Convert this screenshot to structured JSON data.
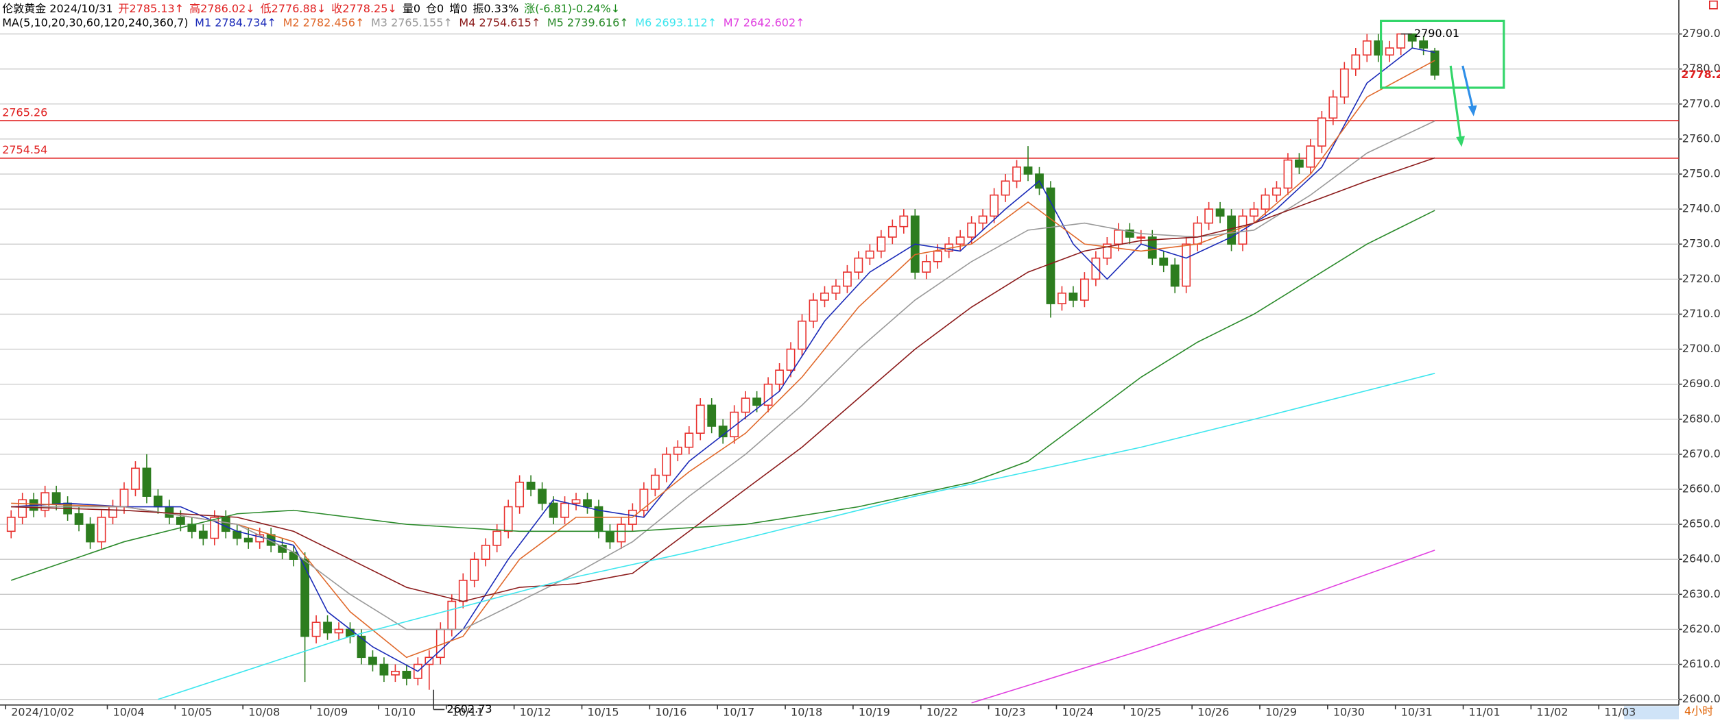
{
  "header": {
    "line1": [
      {
        "text": "伦敦黄金 2024/10/31",
        "color": "#000000"
      },
      {
        "text": "开2785.13↑",
        "color": "#e02020"
      },
      {
        "text": "高2786.02↓",
        "color": "#e02020"
      },
      {
        "text": "低2776.88↓",
        "color": "#e02020"
      },
      {
        "text": "收2778.25↓",
        "color": "#e02020"
      },
      {
        "text": "量0",
        "color": "#000000"
      },
      {
        "text": "仓0",
        "color": "#000000"
      },
      {
        "text": "增0",
        "color": "#000000"
      },
      {
        "text": "振0.33%",
        "color": "#000000"
      },
      {
        "text": "涨(-6.81)-0.24%↓",
        "color": "#1a8a1a"
      }
    ],
    "ma_label": "MA(5,10,20,30,60,120,240,360,7)"
  },
  "chart_data": {
    "type": "candlestick",
    "period": "4小时",
    "up_color": "#e8322f",
    "down_color": "#2d7d1f",
    "grid": true,
    "xlim": [
      -0.5,
      147.6
    ],
    "ylim": [
      2598.4,
      2799.7
    ],
    "xticks": [
      {
        "value": 0,
        "label": "2024/10/02"
      },
      {
        "value": 9,
        "label": "10/04"
      },
      {
        "value": 15,
        "label": "10/05"
      },
      {
        "value": 21,
        "label": "10/08"
      },
      {
        "value": 27,
        "label": "10/09"
      },
      {
        "value": 33,
        "label": "10/10"
      },
      {
        "value": 39,
        "label": "10/11"
      },
      {
        "value": 45,
        "label": "10/12"
      },
      {
        "value": 51,
        "label": "10/15"
      },
      {
        "value": 57,
        "label": "10/16"
      },
      {
        "value": 63,
        "label": "10/17"
      },
      {
        "value": 69,
        "label": "10/18"
      },
      {
        "value": 75,
        "label": "10/19"
      },
      {
        "value": 81,
        "label": "10/22"
      },
      {
        "value": 87,
        "label": "10/23"
      },
      {
        "value": 93,
        "label": "10/24"
      },
      {
        "value": 99,
        "label": "10/25"
      },
      {
        "value": 105,
        "label": "10/26"
      },
      {
        "value": 111,
        "label": "10/29"
      },
      {
        "value": 117,
        "label": "10/30"
      },
      {
        "value": 123,
        "label": "10/31"
      },
      {
        "value": 129,
        "label": "11/01"
      },
      {
        "value": 135,
        "label": "11/02"
      },
      {
        "value": 141,
        "label": "11/03"
      }
    ],
    "yticks": [
      {
        "value": 2600,
        "label": "2600.00"
      },
      {
        "value": 2610,
        "label": "2610.00"
      },
      {
        "value": 2620,
        "label": "2620.00"
      },
      {
        "value": 2630,
        "label": "2630.00"
      },
      {
        "value": 2640,
        "label": "2640.00"
      },
      {
        "value": 2650,
        "label": "2650.00"
      },
      {
        "value": 2660,
        "label": "2660.00"
      },
      {
        "value": 2670,
        "label": "2670.00"
      },
      {
        "value": 2680,
        "label": "2680.00"
      },
      {
        "value": 2690,
        "label": "2690.00"
      },
      {
        "value": 2700,
        "label": "2700.00"
      },
      {
        "value": 2710,
        "label": "2710.00"
      },
      {
        "value": 2720,
        "label": "2720.00"
      },
      {
        "value": 2730,
        "label": "2730.00"
      },
      {
        "value": 2740,
        "label": "2740.00"
      },
      {
        "value": 2750,
        "label": "2750.00"
      },
      {
        "value": 2760,
        "label": "2760.00"
      },
      {
        "value": 2770,
        "label": "2770.00"
      },
      {
        "value": 2780,
        "label": "2780.00"
      },
      {
        "value": 2790,
        "label": "2790.00"
      }
    ],
    "levels": [
      2765.26,
      2754.54
    ],
    "level_color": "#e02020",
    "open": [
      2648,
      2652,
      2657,
      2654,
      2659,
      2656,
      2653,
      2650,
      2645,
      2652,
      2655,
      2660,
      2666,
      2658,
      2655,
      2652,
      2650,
      2648,
      2646,
      2652,
      2648,
      2646,
      2645,
      2647,
      2644,
      2642,
      2640,
      2618,
      2622,
      2619,
      2620,
      2618,
      2612,
      2610,
      2607,
      2608,
      2606,
      2610,
      2612,
      2620,
      2628,
      2634,
      2640,
      2644,
      2648,
      2655,
      2662,
      2660,
      2656,
      2652,
      2656,
      2657,
      2655,
      2648,
      2645,
      2650,
      2654,
      2660,
      2664,
      2670,
      2672,
      2676,
      2684,
      2678,
      2675,
      2682,
      2686,
      2684,
      2690,
      2694,
      2700,
      2708,
      2714,
      2716,
      2718,
      2722,
      2726,
      2728,
      2732,
      2735,
      2738,
      2722,
      2725,
      2728,
      2730,
      2732,
      2736,
      2738,
      2744,
      2748,
      2752,
      2750,
      2746,
      2713,
      2716,
      2714,
      2720,
      2726,
      2730,
      2734,
      2732,
      2732,
      2726,
      2724,
      2718,
      2730,
      2736,
      2740,
      2738,
      2730,
      2738,
      2740,
      2744,
      2746,
      2754,
      2752,
      2758,
      2766,
      2772,
      2780,
      2784,
      2788,
      2784,
      2786,
      2790,
      2788,
      2785.13
    ],
    "high": [
      2654,
      2659,
      2659,
      2661,
      2661,
      2658,
      2655,
      2652,
      2654,
      2657,
      2662,
      2668,
      2670,
      2660,
      2657,
      2654,
      2652,
      2650,
      2654,
      2654,
      2650,
      2649,
      2649,
      2649,
      2646,
      2644,
      2642,
      2624,
      2624,
      2622,
      2622,
      2620,
      2614,
      2612,
      2610,
      2610,
      2612,
      2614,
      2622,
      2630,
      2636,
      2642,
      2646,
      2650,
      2657,
      2664,
      2664,
      2662,
      2658,
      2658,
      2659,
      2659,
      2657,
      2650,
      2652,
      2656,
      2662,
      2666,
      2672,
      2674,
      2678,
      2686,
      2686,
      2680,
      2684,
      2688,
      2688,
      2692,
      2696,
      2702,
      2710,
      2716,
      2718,
      2720,
      2724,
      2728,
      2730,
      2734,
      2737,
      2740,
      2740,
      2727,
      2730,
      2732,
      2734,
      2738,
      2740,
      2746,
      2750,
      2754,
      2758,
      2752,
      2748,
      2718,
      2718,
      2722,
      2728,
      2732,
      2736,
      2736,
      2734,
      2734,
      2728,
      2726,
      2732,
      2738,
      2742,
      2742,
      2740,
      2740,
      2742,
      2746,
      2748,
      2756,
      2756,
      2760,
      2768,
      2774,
      2782,
      2786,
      2790,
      2790,
      2788,
      2790.01,
      2790,
      2789.5,
      2786.02
    ],
    "low": [
      2646,
      2650,
      2652,
      2652,
      2654,
      2651,
      2648,
      2643,
      2643,
      2650,
      2653,
      2658,
      2656,
      2653,
      2650,
      2648,
      2646,
      2644,
      2644,
      2646,
      2644,
      2643,
      2643,
      2642,
      2640,
      2638,
      2605,
      2616,
      2617,
      2617,
      2616,
      2610,
      2608,
      2605,
      2605,
      2604,
      2604,
      2602.73,
      2610,
      2618,
      2626,
      2632,
      2638,
      2642,
      2646,
      2653,
      2658,
      2654,
      2650,
      2650,
      2654,
      2653,
      2646,
      2643,
      2643,
      2648,
      2652,
      2658,
      2662,
      2668,
      2670,
      2674,
      2676,
      2673,
      2673,
      2680,
      2682,
      2682,
      2688,
      2692,
      2698,
      2706,
      2712,
      2714,
      2716,
      2720,
      2724,
      2726,
      2730,
      2733,
      2720,
      2720,
      2723,
      2726,
      2728,
      2730,
      2734,
      2736,
      2742,
      2746,
      2748,
      2744,
      2709,
      2711,
      2712,
      2712,
      2718,
      2724,
      2728,
      2730,
      2730,
      2724,
      2722,
      2716,
      2716,
      2728,
      2734,
      2736,
      2728,
      2728,
      2736,
      2738,
      2742,
      2744,
      2750,
      2750,
      2756,
      2764,
      2770,
      2778,
      2782,
      2782,
      2782,
      2784,
      2786,
      2784,
      2776.88
    ],
    "close": [
      2652,
      2657,
      2654,
      2659,
      2656,
      2653,
      2650,
      2645,
      2652,
      2655,
      2660,
      2666,
      2658,
      2655,
      2652,
      2650,
      2648,
      2646,
      2652,
      2648,
      2646,
      2645,
      2647,
      2644,
      2642,
      2640,
      2618,
      2622,
      2619,
      2620,
      2618,
      2612,
      2610,
      2607,
      2608,
      2606,
      2610,
      2612,
      2620,
      2628,
      2634,
      2640,
      2644,
      2648,
      2655,
      2662,
      2660,
      2656,
      2652,
      2656,
      2657,
      2655,
      2648,
      2645,
      2650,
      2654,
      2660,
      2664,
      2670,
      2672,
      2676,
      2684,
      2678,
      2675,
      2682,
      2686,
      2684,
      2690,
      2694,
      2700,
      2708,
      2714,
      2716,
      2718,
      2722,
      2726,
      2728,
      2732,
      2735,
      2738,
      2722,
      2725,
      2728,
      2730,
      2732,
      2736,
      2738,
      2744,
      2748,
      2752,
      2750,
      2746,
      2713,
      2716,
      2714,
      2720,
      2726,
      2730,
      2734,
      2732,
      2732,
      2726,
      2724,
      2718,
      2730,
      2736,
      2740,
      2738,
      2730,
      2738,
      2740,
      2744,
      2746,
      2754,
      2752,
      2758,
      2766,
      2772,
      2780,
      2784,
      2788,
      2784,
      2786,
      2790,
      2788,
      2786,
      2778.25
    ],
    "series": [
      {
        "name": "M1 2784.734↑",
        "color": "#1a2ab8",
        "x": [
          0,
          5,
          10,
          15,
          20,
          25,
          28,
          32,
          36,
          40,
          44,
          48,
          52,
          56,
          60,
          64,
          68,
          72,
          76,
          80,
          84,
          88,
          91,
          94,
          97,
          100,
          104,
          108,
          112,
          116,
          120,
          124,
          126
        ],
        "values": [
          2655,
          2656,
          2655,
          2655,
          2648,
          2644,
          2625,
          2615,
          2608,
          2620,
          2640,
          2657,
          2654,
          2652,
          2668,
          2678,
          2688,
          2708,
          2722,
          2730,
          2728,
          2740,
          2748,
          2730,
          2720,
          2730,
          2726,
          2732,
          2740,
          2752,
          2776,
          2786,
          2784.734
        ]
      },
      {
        "name": "M2 2782.456↑",
        "color": "#e0682a",
        "x": [
          0,
          10,
          20,
          25,
          30,
          35,
          40,
          45,
          50,
          55,
          60,
          65,
          70,
          75,
          80,
          85,
          90,
          95,
          100,
          105,
          110,
          115,
          120,
          126
        ],
        "values": [
          2656,
          2655,
          2650,
          2645,
          2625,
          2612,
          2618,
          2640,
          2652,
          2652,
          2665,
          2676,
          2692,
          2712,
          2727,
          2730,
          2742,
          2730,
          2728,
          2730,
          2736,
          2750,
          2772,
          2782.456
        ]
      },
      {
        "name": "M3 2765.155↑",
        "color": "#999999",
        "x": [
          0,
          10,
          20,
          25,
          30,
          35,
          40,
          45,
          50,
          55,
          60,
          65,
          70,
          75,
          80,
          85,
          90,
          95,
          100,
          105,
          110,
          115,
          120,
          126
        ],
        "values": [
          2655,
          2655,
          2650,
          2642,
          2630,
          2620,
          2620,
          2628,
          2636,
          2645,
          2658,
          2670,
          2684,
          2700,
          2714,
          2725,
          2734,
          2736,
          2733,
          2732,
          2734,
          2744,
          2756,
          2765.155
        ]
      },
      {
        "name": "M4 2754.615↑",
        "color": "#8b1a1a",
        "x": [
          0,
          10,
          20,
          25,
          30,
          35,
          40,
          45,
          50,
          55,
          60,
          65,
          70,
          75,
          80,
          85,
          90,
          95,
          100,
          105,
          110,
          115,
          120,
          126
        ],
        "values": [
          2655,
          2654,
          2652,
          2648,
          2640,
          2632,
          2628,
          2632,
          2633,
          2636,
          2648,
          2660,
          2672,
          2686,
          2700,
          2712,
          2722,
          2728,
          2731,
          2732,
          2736,
          2742,
          2748,
          2754.615
        ]
      },
      {
        "name": "M5 2739.616↑",
        "color": "#2a8a2a",
        "x": [
          0,
          10,
          20,
          25,
          35,
          45,
          55,
          65,
          75,
          85,
          90,
          95,
          100,
          105,
          110,
          115,
          120,
          126
        ],
        "values": [
          2634,
          2645,
          2653,
          2654,
          2650,
          2648,
          2648,
          2650,
          2655,
          2662,
          2668,
          2680,
          2692,
          2702,
          2710,
          2720,
          2730,
          2739.616
        ]
      },
      {
        "name": "M6 2693.112↑",
        "color": "#3ee6ee",
        "x": [
          13,
          30,
          50,
          60,
          70,
          80,
          90,
          100,
          110,
          126
        ],
        "values": [
          2600,
          2618,
          2635,
          2642,
          2650,
          2658,
          2665,
          2672,
          2680,
          2693.112
        ]
      },
      {
        "name": "M7 2642.602↑",
        "color": "#e040e0",
        "x": [
          85,
          100,
          115,
          126
        ],
        "values": [
          2599,
          2614,
          2630,
          2642.602
        ]
      }
    ]
  }
}
